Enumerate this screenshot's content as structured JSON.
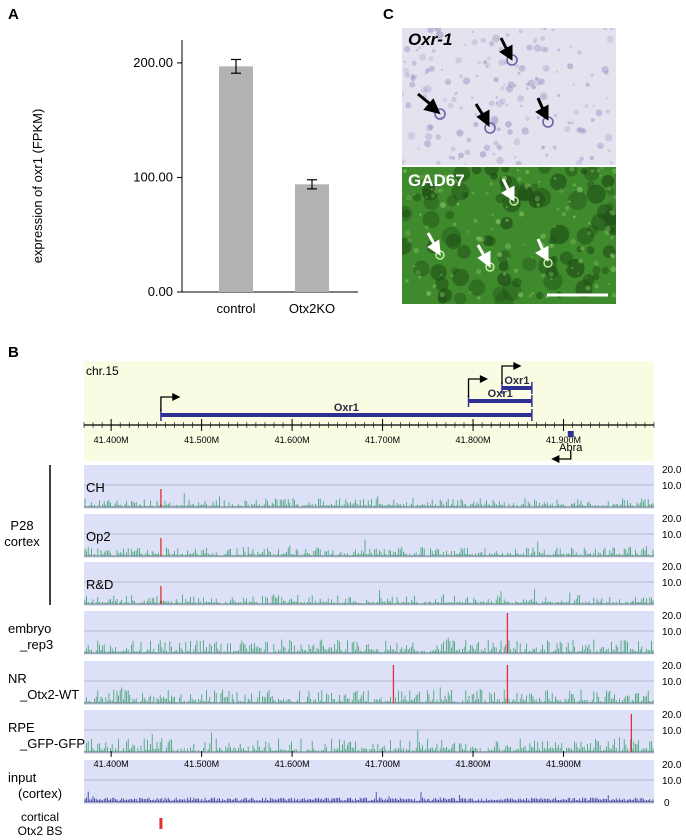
{
  "panels": {
    "a": {
      "letter": "A",
      "chart_data": {
        "type": "bar",
        "categories": [
          "control",
          "Otx2KO"
        ],
        "values": [
          197,
          94
        ],
        "errors": [
          6,
          4
        ],
        "ylabel": "expression of oxr1 (FPKM)",
        "ylim": [
          0,
          220
        ],
        "yticks": [
          "0.00",
          "100.00",
          "200.00"
        ],
        "ytick_values": [
          0,
          100,
          200
        ],
        "bar_color": "#b3b3b3"
      }
    },
    "c": {
      "letter": "C",
      "top_label": "Oxr-1",
      "bottom_label": "GAD67",
      "top_bg": "#e4e2ef",
      "bottom_bg": "#3f8a2c"
    },
    "b": {
      "letter": "B",
      "chromosome": "chr.15",
      "genes": [
        {
          "label": "Oxr1",
          "start": 41.455,
          "end": 41.865
        },
        {
          "label": "Oxr1",
          "start": 41.795,
          "end": 41.865
        },
        {
          "label": "Oxr1",
          "start": 41.832,
          "end": 41.865
        }
      ],
      "abra_label": "Abra",
      "axis_ticks": [
        "41.400M",
        "41.500M",
        "41.600M",
        "41.700M",
        "41.800M",
        "41.900M"
      ],
      "axis_tick_values": [
        41.4,
        41.5,
        41.6,
        41.7,
        41.8,
        41.9
      ],
      "range": [
        41.37,
        42.0
      ],
      "group_label_line1": "P28",
      "group_label_line2": "cortex",
      "tracks": [
        {
          "label1": "CH",
          "label2": "",
          "peaks": [
            41.455
          ],
          "color": "#3a9e6c"
        },
        {
          "label1": "Op2",
          "label2": "",
          "peaks": [
            41.455
          ],
          "color": "#3a9e6c"
        },
        {
          "label1": "R&D",
          "label2": "",
          "peaks": [
            41.455
          ],
          "color": "#3a9e6c"
        },
        {
          "label1": "embryo",
          "label2": "_rep3",
          "peaks": [
            41.838
          ],
          "color": "#3a9e6c"
        },
        {
          "label1": "NR",
          "label2": "_Otx2-WT",
          "peaks": [
            41.712,
            41.838
          ],
          "color": "#3a9e6c"
        },
        {
          "label1": "RPE",
          "label2": "_GFP-GFP",
          "peaks": [
            41.975
          ],
          "color": "#3a9e6c"
        },
        {
          "label1": "input",
          "label2": "(cortex)",
          "peaks": [],
          "color": "#2b2f9e"
        }
      ],
      "track_scale_top": "20.0",
      "track_scale_mid": "10.0",
      "input_scale_bottom": "0",
      "bs_label1": "cortical",
      "bs_label2": "Otx2 BS",
      "bs_sites": [
        41.455
      ],
      "peak_color": "#e0302f",
      "gene_color": "#2e3192",
      "track_bg": "#dde1f7",
      "header_bg": "#fafbe3"
    }
  }
}
